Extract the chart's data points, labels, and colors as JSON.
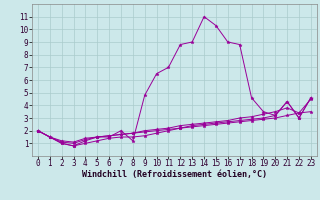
{
  "title": "",
  "xlabel": "Windchill (Refroidissement éolien,°C)",
  "ylabel": "",
  "background_color": "#cce8ea",
  "grid_color": "#aacccc",
  "line_color": "#990099",
  "xlim": [
    -0.5,
    23.5
  ],
  "ylim": [
    0,
    12
  ],
  "xticks": [
    0,
    1,
    2,
    3,
    4,
    5,
    6,
    7,
    8,
    9,
    10,
    11,
    12,
    13,
    14,
    15,
    16,
    17,
    18,
    19,
    20,
    21,
    22,
    23
  ],
  "yticks": [
    1,
    2,
    3,
    4,
    5,
    6,
    7,
    8,
    9,
    10,
    11
  ],
  "lines": [
    {
      "x": [
        0,
        1,
        2,
        3,
        4,
        5,
        6,
        7,
        8,
        9,
        10,
        11,
        12,
        13,
        14,
        15,
        16,
        17,
        18,
        19,
        20,
        21,
        22,
        23
      ],
      "y": [
        2.0,
        1.5,
        1.0,
        0.8,
        1.2,
        1.5,
        1.5,
        2.0,
        1.2,
        4.8,
        6.5,
        7.0,
        8.8,
        9.0,
        11.0,
        10.3,
        9.0,
        8.8,
        4.6,
        3.5,
        3.2,
        4.3,
        3.0,
        4.6
      ]
    },
    {
      "x": [
        0,
        1,
        2,
        3,
        4,
        5,
        6,
        7,
        8,
        9,
        10,
        11,
        12,
        13,
        14,
        15,
        16,
        17,
        18,
        19,
        20,
        21,
        22,
        23
      ],
      "y": [
        2.0,
        1.5,
        1.1,
        1.0,
        1.3,
        1.5,
        1.6,
        1.7,
        1.8,
        1.9,
        2.0,
        2.1,
        2.2,
        2.3,
        2.4,
        2.5,
        2.6,
        2.7,
        2.8,
        2.9,
        3.0,
        3.2,
        3.4,
        3.5
      ]
    },
    {
      "x": [
        0,
        1,
        2,
        3,
        4,
        5,
        6,
        7,
        8,
        9,
        10,
        11,
        12,
        13,
        14,
        15,
        16,
        17,
        18,
        19,
        20,
        21,
        22,
        23
      ],
      "y": [
        2.0,
        1.5,
        1.0,
        0.8,
        1.0,
        1.2,
        1.4,
        1.5,
        1.5,
        1.6,
        1.8,
        2.0,
        2.2,
        2.4,
        2.5,
        2.6,
        2.7,
        2.8,
        2.9,
        3.0,
        3.2,
        4.3,
        3.0,
        4.6
      ]
    },
    {
      "x": [
        0,
        1,
        2,
        3,
        4,
        5,
        6,
        7,
        8,
        9,
        10,
        11,
        12,
        13,
        14,
        15,
        16,
        17,
        18,
        19,
        20,
        21,
        22,
        23
      ],
      "y": [
        2.0,
        1.5,
        1.2,
        1.1,
        1.4,
        1.5,
        1.6,
        1.7,
        1.8,
        2.0,
        2.1,
        2.2,
        2.4,
        2.5,
        2.6,
        2.7,
        2.8,
        3.0,
        3.1,
        3.3,
        3.5,
        3.8,
        3.4,
        4.5
      ]
    }
  ],
  "tick_fontsize": 5.5,
  "xlabel_fontsize": 6,
  "marker_size": 2.5,
  "linewidth": 0.7
}
